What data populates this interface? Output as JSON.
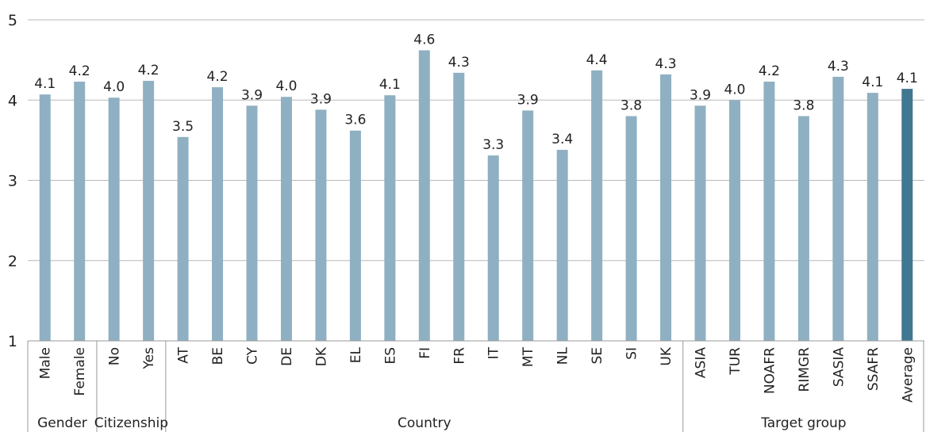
{
  "chart_data": {
    "type": "bar",
    "ylim": [
      1,
      5
    ],
    "yticks": [
      "1",
      "2",
      "3",
      "4",
      "5"
    ],
    "grid": true,
    "categories": [
      "Male",
      "Female",
      "No",
      "Yes",
      "AT",
      "BE",
      "CY",
      "DE",
      "DK",
      "EL",
      "ES",
      "FI",
      "FR",
      "IT",
      "MT",
      "NL",
      "SE",
      "SI",
      "UK",
      "ASIA",
      "TUR",
      "NOAFR",
      "RIMGR",
      "SASIA",
      "SSAFR",
      "Average"
    ],
    "values": [
      4.07,
      4.23,
      4.03,
      4.24,
      3.54,
      4.16,
      3.93,
      4.04,
      3.88,
      3.62,
      4.06,
      4.62,
      4.34,
      3.31,
      3.87,
      3.38,
      4.37,
      3.8,
      4.32,
      3.93,
      4.0,
      4.23,
      3.8,
      4.29,
      4.09,
      4.14
    ],
    "value_labels": [
      "4.1",
      "4.2",
      "4.0",
      "4.2",
      "3.5",
      "4.2",
      "3.9",
      "4.0",
      "3.9",
      "3.6",
      "4.1",
      "4.6",
      "4.3",
      "3.3",
      "3.9",
      "3.4",
      "4.4",
      "3.8",
      "4.3",
      "3.9",
      "4.0",
      "4.2",
      "3.8",
      "4.3",
      "4.1",
      "4.1"
    ],
    "groups": [
      {
        "name": "Gender",
        "start": 0,
        "end": 1
      },
      {
        "name": "Citizenship",
        "start": 2,
        "end": 3
      },
      {
        "name": "Country",
        "start": 4,
        "end": 18
      },
      {
        "name": "Target group",
        "start": 19,
        "end": 25
      }
    ],
    "colors": {
      "bar": "#8fb0c2",
      "highlight": "#3f7890",
      "grid": "#b9b9b9",
      "axis": "#999999"
    },
    "highlight_category": "Average"
  }
}
